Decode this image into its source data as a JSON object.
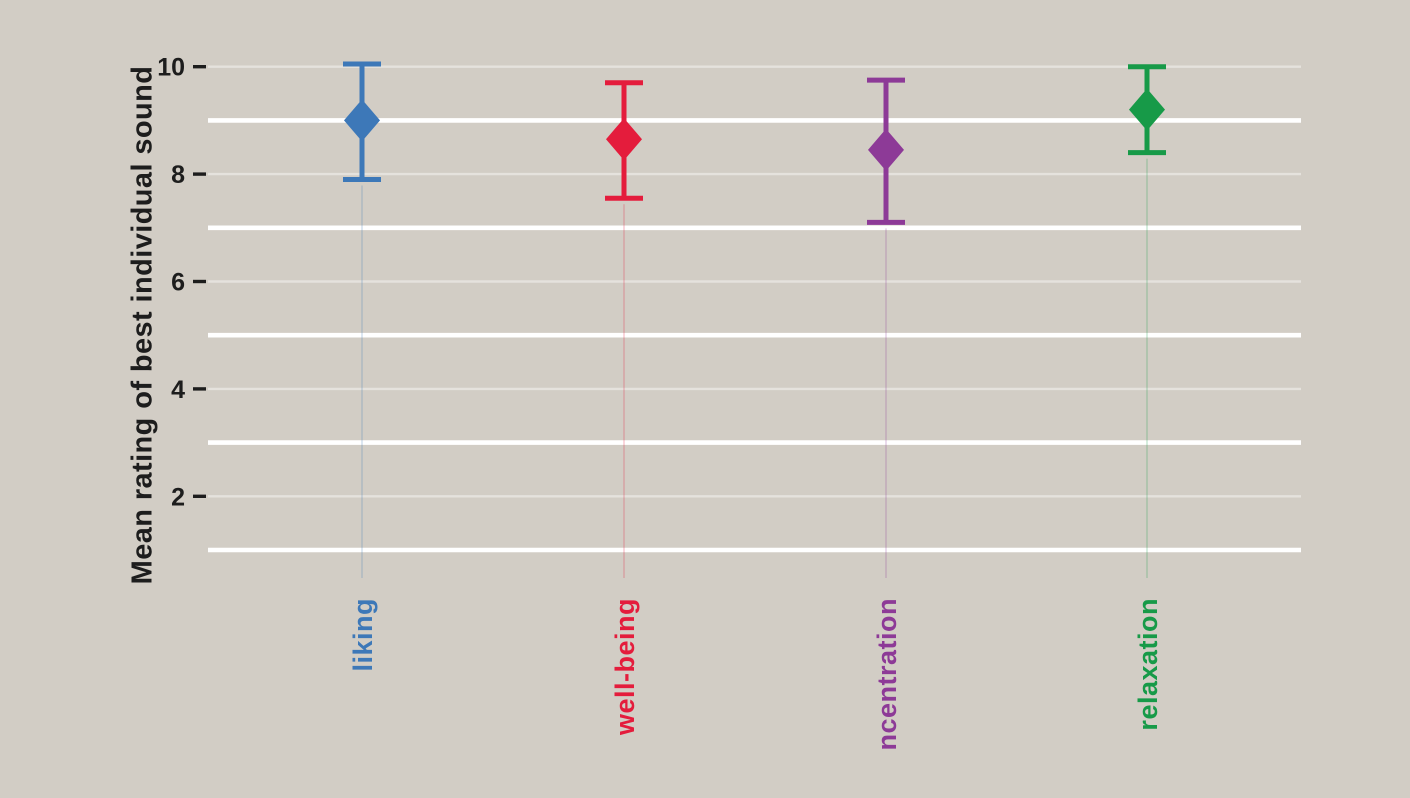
{
  "page": {
    "background_color": "#d2cdc5"
  },
  "chart_data": {
    "type": "scatter",
    "subtype": "point-estimates-with-error-bars",
    "title": "",
    "xlabel": "",
    "ylabel": "Mean rating of best individual sound",
    "ylim": [
      0,
      10.5
    ],
    "yticks": [
      10,
      8,
      6,
      4,
      2
    ],
    "ytick_labels": [
      "10",
      "8",
      "6",
      "4",
      "2"
    ],
    "grid": {
      "major_gridline_values": [
        9,
        7,
        5,
        3,
        1
      ],
      "minor_gridline_values": [
        10,
        8,
        6,
        4,
        2
      ],
      "gridline_color": "#ffffff"
    },
    "legend": "none",
    "marker": "diamond",
    "axis_text_color": "#1d1d1d",
    "points": [
      {
        "label": "liking",
        "color": "#3d78b8",
        "mean": 9.0,
        "err_low": 7.9,
        "err_high": 10.05
      },
      {
        "label": "well-being",
        "color": "#e41c3c",
        "mean": 8.65,
        "err_low": 7.55,
        "err_high": 9.7
      },
      {
        "label": "ncentration",
        "color": "#8d3a97",
        "mean": 8.45,
        "err_low": 7.1,
        "err_high": 9.75
      },
      {
        "label": "relaxation",
        "color": "#179a48",
        "mean": 9.2,
        "err_low": 8.4,
        "err_high": 10.0
      }
    ]
  }
}
